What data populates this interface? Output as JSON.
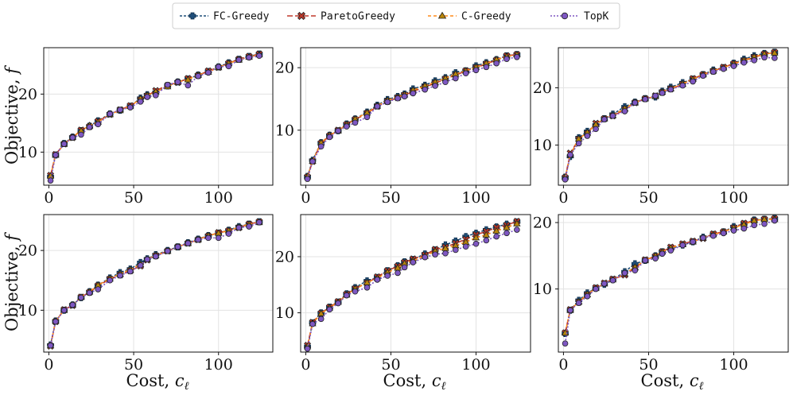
{
  "legend": {
    "entries": [
      {
        "label": "FC-Greedy",
        "color": "#1f4e79",
        "dash": "3,2",
        "marker": "plus"
      },
      {
        "label": "ParetoGreedy",
        "color": "#c0392b",
        "dash": "7,3",
        "marker": "x"
      },
      {
        "label": "C-Greedy",
        "color": "#ff8c1a",
        "dash": "4,3",
        "marker": "triangle"
      },
      {
        "label": "TopK",
        "color": "#7e57c2",
        "dash": "2,2",
        "marker": "circle"
      }
    ]
  },
  "axis_labels": {
    "y_prefix": "Objective, ",
    "y_var": "f",
    "x_prefix": "Cost, ",
    "x_var": "c",
    "x_sub": "ℓ"
  },
  "chart_data": [
    {
      "type": "line",
      "panel": "top-left",
      "xlabel": "",
      "ylabel": "Objective, f",
      "xlim": [
        -3,
        132
      ],
      "ylim": [
        4.3,
        28
      ],
      "xticks": [
        0,
        50,
        100
      ],
      "yticks": [
        10,
        20
      ],
      "x": [
        1,
        4,
        9,
        14,
        19,
        24,
        29,
        36,
        42,
        48,
        54,
        58,
        63,
        70,
        76,
        82,
        88,
        94,
        100,
        106,
        112,
        118,
        124
      ],
      "series": [
        {
          "name": "FC-Greedy",
          "values": [
            5.8,
            9.5,
            11.5,
            12.6,
            13.7,
            14.5,
            15.4,
            16.6,
            17.2,
            17.9,
            19.3,
            19.9,
            20.3,
            21.4,
            22.1,
            22.6,
            23.3,
            23.9,
            24.7,
            25.4,
            26.0,
            26.5,
            26.9
          ]
        },
        {
          "name": "ParetoGreedy",
          "values": [
            6.0,
            9.6,
            11.4,
            12.5,
            13.8,
            14.4,
            15.3,
            16.5,
            17.3,
            18.0,
            19.0,
            19.7,
            20.6,
            21.5,
            22.0,
            22.7,
            23.2,
            24.0,
            24.6,
            25.3,
            26.0,
            26.5,
            26.9
          ]
        },
        {
          "name": "C-Greedy",
          "values": [
            5.9,
            9.5,
            11.4,
            12.6,
            13.7,
            14.6,
            15.2,
            16.5,
            17.2,
            17.9,
            19.2,
            19.8,
            20.4,
            21.3,
            22.1,
            22.5,
            23.3,
            23.8,
            24.6,
            25.3,
            25.9,
            26.4,
            26.8
          ]
        },
        {
          "name": "TopK",
          "values": [
            5.1,
            9.5,
            11.4,
            12.5,
            13.0,
            14.3,
            14.8,
            16.6,
            17.3,
            17.7,
            18.7,
            19.5,
            19.8,
            21.6,
            22.1,
            21.5,
            23.1,
            23.7,
            24.7,
            24.8,
            25.9,
            26.3,
            26.6
          ]
        }
      ]
    },
    {
      "type": "line",
      "panel": "top-middle",
      "xlabel": "",
      "ylabel": "",
      "xlim": [
        -3,
        132
      ],
      "ylim": [
        1.2,
        23.2
      ],
      "xticks": [
        0,
        50,
        100
      ],
      "yticks": [
        10,
        20
      ],
      "x": [
        1,
        4,
        9,
        14,
        19,
        24,
        29,
        36,
        42,
        48,
        54,
        58,
        63,
        70,
        76,
        82,
        88,
        94,
        100,
        106,
        112,
        118,
        124
      ],
      "series": [
        {
          "name": "FC-Greedy",
          "values": [
            2.6,
            5.2,
            8.0,
            9.2,
            9.9,
            11.0,
            11.8,
            12.9,
            14.0,
            14.9,
            15.4,
            15.8,
            16.6,
            17.2,
            17.9,
            18.4,
            19.2,
            19.5,
            20.3,
            20.8,
            21.3,
            21.9,
            22.1
          ]
        },
        {
          "name": "ParetoGreedy",
          "values": [
            2.5,
            5.0,
            7.9,
            9.1,
            10.0,
            10.9,
            11.7,
            12.7,
            13.8,
            14.6,
            15.2,
            15.6,
            16.2,
            16.9,
            17.5,
            18.2,
            18.8,
            19.5,
            20.0,
            20.6,
            21.2,
            21.9,
            22.1
          ]
        },
        {
          "name": "C-Greedy",
          "values": [
            2.6,
            5.1,
            8.0,
            9.2,
            9.9,
            10.9,
            11.8,
            12.8,
            13.9,
            14.8,
            15.3,
            15.7,
            16.4,
            17.1,
            17.7,
            18.3,
            19.0,
            19.5,
            20.1,
            20.7,
            21.3,
            21.8,
            22.1
          ]
        },
        {
          "name": "TopK",
          "values": [
            2.2,
            5.0,
            7.4,
            8.9,
            9.9,
            10.6,
            11.2,
            12.1,
            13.8,
            14.5,
            15.1,
            15.4,
            15.9,
            16.5,
            17.1,
            17.7,
            18.3,
            19.1,
            19.6,
            20.1,
            20.7,
            21.4,
            21.7
          ]
        }
      ]
    },
    {
      "type": "line",
      "panel": "top-right",
      "xlabel": "",
      "ylabel": "",
      "xlim": [
        -3,
        132
      ],
      "ylim": [
        3,
        27
      ],
      "xticks": [
        0,
        50,
        100
      ],
      "yticks": [
        10,
        20
      ],
      "x": [
        1,
        4,
        9,
        14,
        19,
        24,
        29,
        36,
        42,
        48,
        54,
        58,
        63,
        70,
        76,
        82,
        88,
        94,
        100,
        106,
        112,
        118,
        124
      ],
      "series": [
        {
          "name": "FC-Greedy",
          "values": [
            4.4,
            8.0,
            11.3,
            12.4,
            13.5,
            14.6,
            15.4,
            16.7,
            17.5,
            18.1,
            18.4,
            19.4,
            20.1,
            20.9,
            21.5,
            22.3,
            23.1,
            23.5,
            24.3,
            25.0,
            25.6,
            26.0,
            26.2
          ]
        },
        {
          "name": "ParetoGreedy",
          "values": [
            4.3,
            8.6,
            11.0,
            12.0,
            13.8,
            14.6,
            15.1,
            16.2,
            17.4,
            18.1,
            18.6,
            19.2,
            19.8,
            20.6,
            21.6,
            22.3,
            22.9,
            23.6,
            24.2,
            24.7,
            25.3,
            25.9,
            26.2
          ]
        },
        {
          "name": "C-Greedy",
          "values": [
            4.4,
            8.3,
            11.1,
            12.2,
            13.6,
            14.6,
            15.2,
            16.4,
            17.4,
            18.1,
            18.5,
            19.3,
            19.9,
            20.7,
            21.5,
            22.3,
            23.0,
            23.5,
            24.2,
            24.8,
            25.4,
            25.9,
            26.1
          ]
        },
        {
          "name": "TopK",
          "values": [
            4.0,
            8.3,
            10.3,
            11.6,
            12.8,
            14.5,
            15.1,
            15.9,
            17.4,
            18.0,
            18.6,
            19.1,
            19.7,
            20.4,
            21.1,
            22.1,
            22.8,
            23.3,
            23.8,
            24.4,
            24.8,
            25.3,
            25.2
          ]
        }
      ]
    },
    {
      "type": "line",
      "panel": "bottom-left",
      "xlabel": "Cost, c_ℓ",
      "ylabel": "Objective, f",
      "xlim": [
        -3,
        132
      ],
      "ylim": [
        3,
        26
      ],
      "xticks": [
        0,
        50,
        100
      ],
      "yticks": [
        10,
        20
      ],
      "x": [
        1,
        4,
        9,
        14,
        19,
        24,
        29,
        36,
        42,
        48,
        54,
        58,
        63,
        70,
        76,
        82,
        88,
        94,
        100,
        106,
        112,
        118,
        124
      ],
      "series": [
        {
          "name": "FC-Greedy",
          "values": [
            4.2,
            8.2,
            10.0,
            10.9,
            12.1,
            13.1,
            14.2,
            15.4,
            16.3,
            16.9,
            18.0,
            18.6,
            19.3,
            20.0,
            20.6,
            21.3,
            21.9,
            22.5,
            22.9,
            23.4,
            24.0,
            24.4,
            24.8
          ]
        },
        {
          "name": "ParetoGreedy",
          "values": [
            4.0,
            8.1,
            10.1,
            10.8,
            12.2,
            13.0,
            14.1,
            15.2,
            15.9,
            16.6,
            17.4,
            18.4,
            19.1,
            19.9,
            20.6,
            21.2,
            21.8,
            22.4,
            23.0,
            23.3,
            23.8,
            24.4,
            24.8
          ]
        },
        {
          "name": "C-Greedy",
          "values": [
            4.1,
            8.2,
            10.0,
            10.9,
            12.2,
            13.1,
            14.2,
            15.3,
            16.1,
            16.8,
            17.7,
            18.5,
            19.2,
            19.9,
            20.6,
            21.2,
            21.8,
            22.5,
            22.9,
            23.3,
            23.9,
            24.4,
            24.7
          ]
        },
        {
          "name": "TopK",
          "values": [
            4.1,
            8.1,
            10.0,
            10.9,
            12.1,
            12.9,
            13.5,
            15.0,
            15.8,
            16.5,
            17.5,
            18.5,
            19.0,
            19.9,
            20.6,
            21.2,
            21.8,
            22.1,
            22.1,
            22.8,
            23.8,
            24.0,
            24.7
          ]
        }
      ]
    },
    {
      "type": "line",
      "panel": "bottom-middle",
      "xlabel": "Cost, c_ℓ",
      "ylabel": "",
      "xlim": [
        -3,
        132
      ],
      "ylim": [
        3,
        27.5
      ],
      "xticks": [
        0,
        50,
        100
      ],
      "yticks": [
        10,
        20
      ],
      "x": [
        1,
        4,
        9,
        14,
        19,
        24,
        29,
        36,
        42,
        48,
        54,
        58,
        63,
        70,
        76,
        82,
        88,
        94,
        100,
        106,
        112,
        118,
        124
      ],
      "series": [
        {
          "name": "FC-Greedy",
          "values": [
            4.0,
            8.2,
            10.0,
            11.0,
            11.9,
            13.4,
            14.5,
            15.7,
            16.3,
            17.5,
            18.4,
            19.1,
            19.5,
            20.5,
            21.2,
            22.1,
            22.8,
            23.6,
            24.2,
            24.8,
            25.3,
            25.8,
            26.2
          ]
        },
        {
          "name": "ParetoGreedy",
          "values": [
            4.2,
            8.3,
            9.9,
            11.0,
            12.0,
            13.3,
            14.3,
            15.3,
            16.4,
            17.5,
            18.3,
            19.0,
            19.6,
            20.3,
            21.3,
            21.7,
            22.4,
            23.1,
            23.9,
            24.5,
            25.2,
            25.6,
            26.3
          ]
        },
        {
          "name": "C-Greedy",
          "values": [
            4.0,
            8.1,
            9.9,
            10.9,
            11.9,
            13.2,
            14.3,
            15.4,
            16.2,
            17.2,
            18.0,
            18.8,
            19.3,
            20.1,
            21.0,
            21.5,
            22.0,
            22.6,
            23.4,
            23.9,
            24.6,
            25.2,
            25.9
          ]
        },
        {
          "name": "TopK",
          "values": [
            3.6,
            8.0,
            8.9,
            10.6,
            11.7,
            13.1,
            13.8,
            14.5,
            15.9,
            16.6,
            17.1,
            18.1,
            19.0,
            19.9,
            20.4,
            20.6,
            21.2,
            21.8,
            22.3,
            22.9,
            23.6,
            24.2,
            24.8
          ]
        }
      ]
    },
    {
      "type": "line",
      "panel": "bottom-right",
      "xlabel": "Cost, c_ℓ",
      "ylabel": "",
      "xlim": [
        -3,
        132
      ],
      "ylim": [
        0.5,
        21.2
      ],
      "xticks": [
        0,
        50,
        100
      ],
      "yticks": [
        10,
        20
      ],
      "x": [
        1,
        4,
        9,
        14,
        19,
        24,
        29,
        36,
        42,
        48,
        54,
        58,
        63,
        70,
        76,
        82,
        88,
        94,
        100,
        106,
        112,
        118,
        124
      ],
      "series": [
        {
          "name": "FC-Greedy",
          "values": [
            3.3,
            6.8,
            8.3,
            9.4,
            10.1,
            10.7,
            11.4,
            12.6,
            13.8,
            14.3,
            15.0,
            15.6,
            16.1,
            16.6,
            17.1,
            17.8,
            18.2,
            18.6,
            19.4,
            19.8,
            20.4,
            20.5,
            20.6
          ]
        },
        {
          "name": "ParetoGreedy",
          "values": [
            3.4,
            6.9,
            8.0,
            9.1,
            10.2,
            10.9,
            11.5,
            12.1,
            13.1,
            14.4,
            14.9,
            15.6,
            16.3,
            16.8,
            17.2,
            17.6,
            18.3,
            18.6,
            19.2,
            19.9,
            20.3,
            20.5,
            20.6
          ]
        },
        {
          "name": "C-Greedy",
          "values": [
            3.4,
            6.8,
            8.1,
            9.2,
            10.1,
            10.8,
            11.4,
            12.3,
            13.3,
            14.3,
            15.0,
            15.6,
            16.2,
            16.7,
            17.1,
            17.7,
            18.2,
            18.6,
            19.2,
            19.7,
            20.3,
            20.5,
            20.5
          ]
        },
        {
          "name": "TopK",
          "values": [
            1.8,
            6.8,
            7.9,
            8.9,
            10.0,
            10.8,
            11.3,
            12.4,
            12.8,
            14.3,
            14.6,
            15.3,
            15.8,
            16.6,
            17.1,
            17.7,
            18.0,
            18.4,
            18.8,
            19.1,
            19.6,
            19.8,
            20.3
          ]
        }
      ]
    }
  ]
}
